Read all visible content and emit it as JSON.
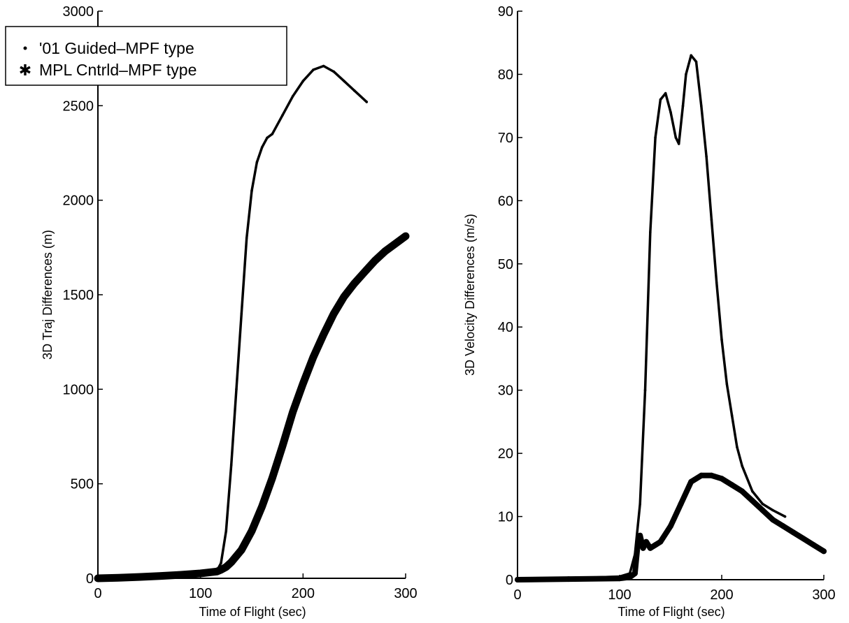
{
  "chart_data": [
    {
      "type": "line",
      "xlabel": "Time of Flight (sec)",
      "ylabel": "3D Traj Differences (m)",
      "xlim": [
        0,
        300
      ],
      "ylim": [
        0,
        3000
      ],
      "xticks": [
        0,
        100,
        200,
        300
      ],
      "yticks": [
        0,
        500,
        1000,
        1500,
        2000,
        2500,
        3000
      ],
      "grid": false,
      "legend_placement": "top-left",
      "legend": [
        "'01 Guided–MPF type",
        "MPL Cntrld–MPF type"
      ],
      "series": [
        {
          "name": "'01 Guided–MPF type",
          "marker": "dot",
          "x": [
            0,
            20,
            40,
            60,
            80,
            100,
            110,
            116,
            120,
            125,
            130,
            135,
            140,
            145,
            150,
            155,
            160,
            165,
            170,
            180,
            190,
            200,
            210,
            220,
            230,
            240,
            250,
            262
          ],
          "y": [
            0,
            2,
            5,
            9,
            15,
            25,
            30,
            40,
            80,
            250,
            600,
            1000,
            1400,
            1800,
            2050,
            2200,
            2280,
            2330,
            2350,
            2450,
            2550,
            2630,
            2690,
            2710,
            2680,
            2630,
            2580,
            2520
          ]
        },
        {
          "name": "MPL Cntrld–MPF type",
          "marker": "star",
          "x": [
            0,
            20,
            40,
            60,
            80,
            100,
            110,
            116,
            120,
            125,
            130,
            140,
            150,
            160,
            170,
            180,
            190,
            200,
            210,
            220,
            230,
            240,
            250,
            260,
            270,
            280,
            290,
            300
          ],
          "y": [
            0,
            3,
            7,
            12,
            18,
            26,
            32,
            36,
            45,
            60,
            85,
            150,
            250,
            380,
            530,
            700,
            880,
            1030,
            1170,
            1290,
            1400,
            1490,
            1560,
            1620,
            1680,
            1730,
            1770,
            1810
          ]
        }
      ]
    },
    {
      "type": "line",
      "xlabel": "Time of Flight (sec)",
      "ylabel": "3D Velocity Differences (m/s)",
      "xlim": [
        0,
        300
      ],
      "ylim": [
        0,
        90
      ],
      "xticks": [
        0,
        100,
        200,
        300
      ],
      "yticks": [
        0,
        10,
        20,
        30,
        40,
        50,
        60,
        70,
        80,
        90
      ],
      "grid": false,
      "series": [
        {
          "name": "'01 Guided–MPF type",
          "marker": "dot",
          "x": [
            0,
            50,
            100,
            110,
            115,
            120,
            125,
            130,
            135,
            140,
            145,
            150,
            155,
            158,
            162,
            165,
            170,
            175,
            180,
            185,
            190,
            195,
            200,
            205,
            210,
            215,
            220,
            230,
            240,
            250,
            262
          ],
          "y": [
            0,
            0.2,
            0.5,
            1,
            4,
            12,
            30,
            55,
            70,
            76,
            77,
            74,
            70,
            69,
            75,
            80,
            83,
            82,
            75,
            67,
            57,
            47,
            38,
            31,
            26,
            21,
            18,
            14,
            12,
            11,
            10
          ]
        },
        {
          "name": "MPL Cntrld–MPF type",
          "marker": "star",
          "x": [
            0,
            50,
            100,
            110,
            115,
            118,
            120,
            123,
            126,
            130,
            135,
            140,
            150,
            160,
            170,
            180,
            190,
            200,
            210,
            220,
            230,
            240,
            250,
            260,
            270,
            280,
            290,
            300
          ],
          "y": [
            0,
            0.1,
            0.2,
            0.4,
            1,
            6,
            7,
            5,
            6,
            5,
            5.5,
            6,
            8.5,
            12,
            15.5,
            16.5,
            16.5,
            16,
            15,
            14,
            12.5,
            11,
            9.5,
            8.5,
            7.5,
            6.5,
            5.5,
            4.5
          ]
        }
      ]
    }
  ]
}
